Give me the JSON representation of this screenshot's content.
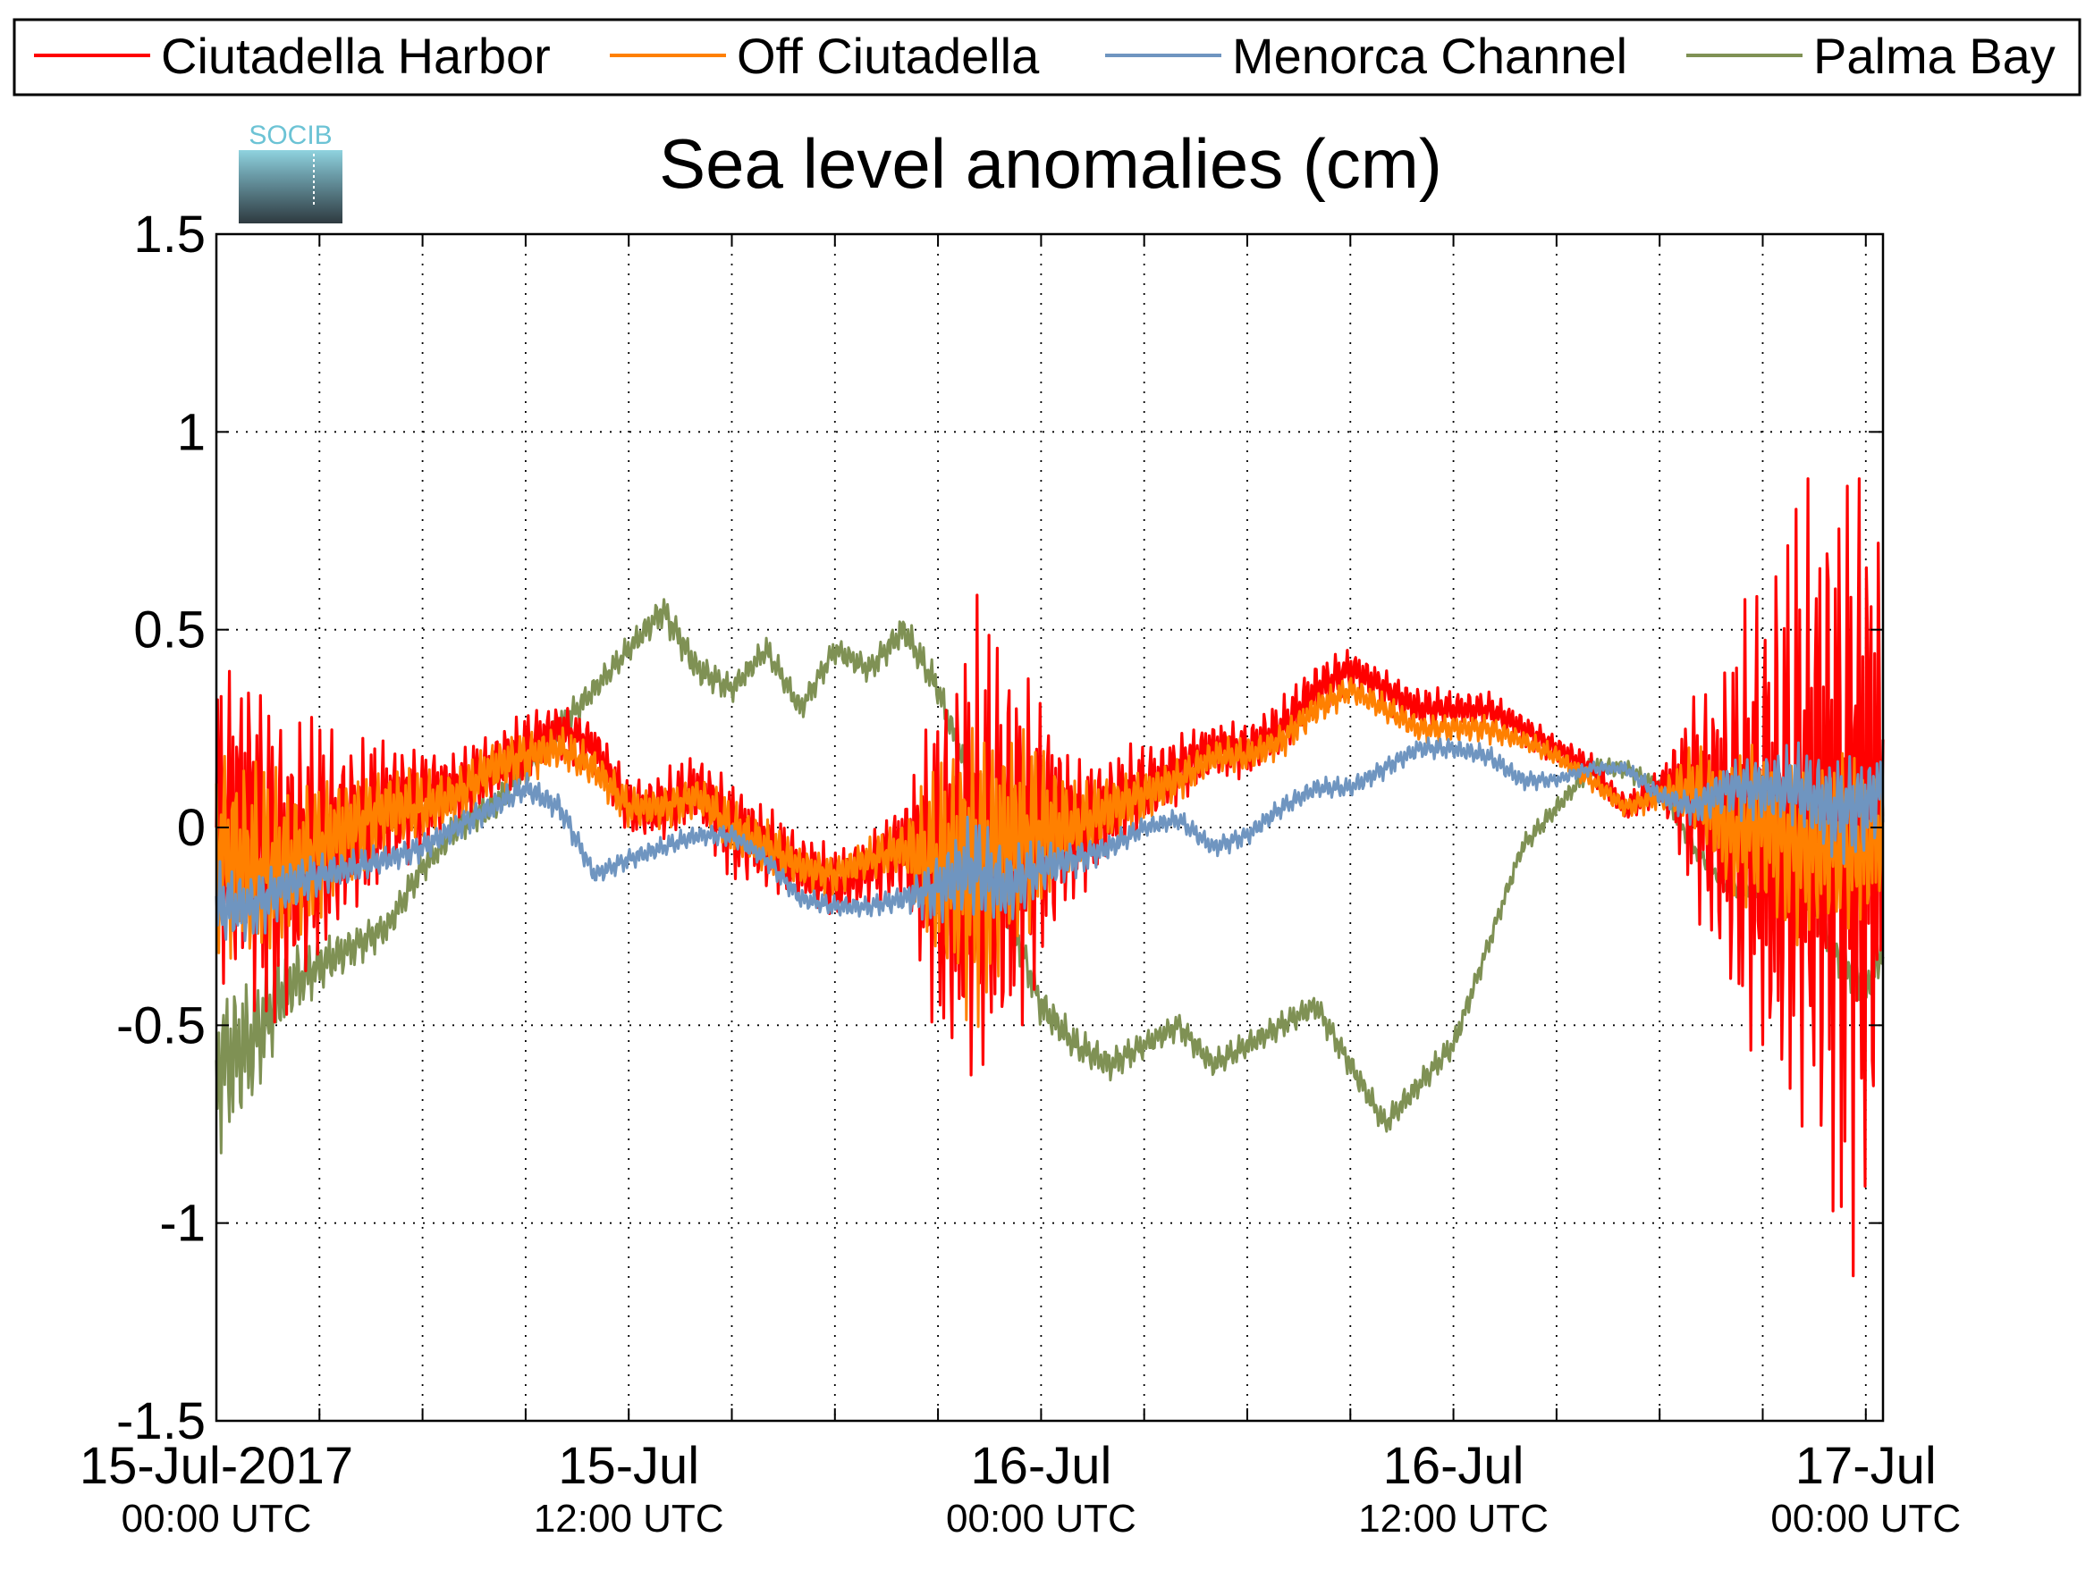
{
  "chart_data": {
    "type": "line",
    "title": "Sea level anomalies (cm)",
    "xlabel": "",
    "ylabel": "",
    "ylim": [
      -1.5,
      1.5
    ],
    "xlim": [
      "2017-07-15T00:00Z",
      "2017-07-17T00:30Z"
    ],
    "yticks": [
      -1.5,
      -1,
      -0.5,
      0,
      0.5,
      1,
      1.5
    ],
    "ytick_labels": [
      "-1.5",
      "-1",
      "-0.5",
      "0",
      "0.5",
      "1",
      "1.5"
    ],
    "x_major_ticks": [
      {
        "time": "2017-07-15T00:00Z",
        "label": "15-Jul-2017",
        "sub": "00:00 UTC"
      },
      {
        "time": "2017-07-15T12:00Z",
        "label": "15-Jul",
        "sub": "12:00 UTC"
      },
      {
        "time": "2017-07-16T00:00Z",
        "label": "16-Jul",
        "sub": "00:00 UTC"
      },
      {
        "time": "2017-07-16T12:00Z",
        "label": "16-Jul",
        "sub": "12:00 UTC"
      },
      {
        "time": "2017-07-17T00:00Z",
        "label": "17-Jul",
        "sub": "00:00 UTC"
      }
    ],
    "grid": true,
    "legend_position": "top",
    "series": [
      {
        "name": "Ciutadella Harbor",
        "color": "#ff0000",
        "x": [
          "2017-07-15T00:00Z",
          "2017-07-15T01:00Z",
          "2017-07-15T02:00Z",
          "2017-07-15T03:00Z",
          "2017-07-15T04:00Z",
          "2017-07-15T05:00Z",
          "2017-07-15T06:00Z",
          "2017-07-15T07:00Z",
          "2017-07-15T08:00Z",
          "2017-07-15T09:00Z",
          "2017-07-15T10:00Z",
          "2017-07-15T11:00Z",
          "2017-07-15T12:00Z",
          "2017-07-15T13:00Z",
          "2017-07-15T14:00Z",
          "2017-07-15T15:00Z",
          "2017-07-15T16:00Z",
          "2017-07-15T17:00Z",
          "2017-07-15T18:00Z",
          "2017-07-15T19:00Z",
          "2017-07-15T20:00Z",
          "2017-07-15T21:00Z",
          "2017-07-15T22:00Z",
          "2017-07-15T23:00Z",
          "2017-07-16T00:00Z",
          "2017-07-16T01:00Z",
          "2017-07-16T02:00Z",
          "2017-07-16T03:00Z",
          "2017-07-16T04:00Z",
          "2017-07-16T05:00Z",
          "2017-07-16T06:00Z",
          "2017-07-16T07:00Z",
          "2017-07-16T08:00Z",
          "2017-07-16T09:00Z",
          "2017-07-16T10:00Z",
          "2017-07-16T11:00Z",
          "2017-07-16T12:00Z",
          "2017-07-16T13:00Z",
          "2017-07-16T14:00Z",
          "2017-07-16T15:00Z",
          "2017-07-16T16:00Z",
          "2017-07-16T17:00Z",
          "2017-07-16T18:00Z",
          "2017-07-16T19:00Z",
          "2017-07-16T20:00Z",
          "2017-07-16T21:00Z",
          "2017-07-16T22:00Z",
          "2017-07-16T23:00Z",
          "2017-07-17T00:00Z",
          "2017-07-17T00:30Z"
        ],
        "y": [
          0.0,
          0.0,
          -0.1,
          -0.05,
          0.0,
          0.05,
          0.08,
          0.1,
          0.15,
          0.2,
          0.25,
          0.2,
          0.05,
          0.05,
          0.1,
          0.0,
          -0.05,
          -0.1,
          -0.15,
          -0.1,
          -0.05,
          -0.1,
          -0.1,
          -0.05,
          0.0,
          0.0,
          0.05,
          0.1,
          0.15,
          0.2,
          0.2,
          0.25,
          0.35,
          0.4,
          0.35,
          0.3,
          0.3,
          0.3,
          0.25,
          0.2,
          0.15,
          0.05,
          0.1,
          0.1,
          0.0,
          0.0,
          0.0,
          0.0,
          0.0,
          0.0
        ],
        "amplitude": [
          0.45,
          0.5,
          0.45,
          0.35,
          0.25,
          0.2,
          0.15,
          0.1,
          0.1,
          0.1,
          0.08,
          0.08,
          0.08,
          0.1,
          0.1,
          0.15,
          0.12,
          0.1,
          0.1,
          0.1,
          0.15,
          0.5,
          0.7,
          0.6,
          0.4,
          0.2,
          0.15,
          0.12,
          0.1,
          0.08,
          0.08,
          0.08,
          0.08,
          0.06,
          0.06,
          0.06,
          0.05,
          0.05,
          0.05,
          0.04,
          0.04,
          0.04,
          0.05,
          0.3,
          0.5,
          0.75,
          0.9,
          1.1,
          1.2,
          0.8
        ]
      },
      {
        "name": "Off Ciutadella",
        "color": "#ff8000",
        "x": [
          "2017-07-15T00:00Z",
          "2017-07-15T01:00Z",
          "2017-07-15T02:00Z",
          "2017-07-15T03:00Z",
          "2017-07-15T04:00Z",
          "2017-07-15T05:00Z",
          "2017-07-15T06:00Z",
          "2017-07-15T07:00Z",
          "2017-07-15T08:00Z",
          "2017-07-15T09:00Z",
          "2017-07-15T10:00Z",
          "2017-07-15T11:00Z",
          "2017-07-15T12:00Z",
          "2017-07-15T13:00Z",
          "2017-07-15T14:00Z",
          "2017-07-15T15:00Z",
          "2017-07-15T16:00Z",
          "2017-07-15T17:00Z",
          "2017-07-15T18:00Z",
          "2017-07-15T19:00Z",
          "2017-07-15T20:00Z",
          "2017-07-15T21:00Z",
          "2017-07-15T22:00Z",
          "2017-07-15T23:00Z",
          "2017-07-16T00:00Z",
          "2017-07-16T01:00Z",
          "2017-07-16T02:00Z",
          "2017-07-16T03:00Z",
          "2017-07-16T04:00Z",
          "2017-07-16T05:00Z",
          "2017-07-16T06:00Z",
          "2017-07-16T07:00Z",
          "2017-07-16T08:00Z",
          "2017-07-16T09:00Z",
          "2017-07-16T10:00Z",
          "2017-07-16T11:00Z",
          "2017-07-16T12:00Z",
          "2017-07-16T13:00Z",
          "2017-07-16T14:00Z",
          "2017-07-16T15:00Z",
          "2017-07-16T16:00Z",
          "2017-07-16T17:00Z",
          "2017-07-16T18:00Z",
          "2017-07-16T19:00Z",
          "2017-07-16T20:00Z",
          "2017-07-16T21:00Z",
          "2017-07-16T22:00Z",
          "2017-07-16T23:00Z",
          "2017-07-17T00:00Z",
          "2017-07-17T00:30Z"
        ],
        "y": [
          -0.05,
          -0.1,
          -0.1,
          -0.05,
          0.0,
          0.05,
          0.05,
          0.08,
          0.15,
          0.18,
          0.2,
          0.15,
          0.05,
          0.05,
          0.08,
          0.0,
          -0.05,
          -0.1,
          -0.12,
          -0.08,
          -0.05,
          -0.1,
          -0.1,
          -0.05,
          0.0,
          0.0,
          0.05,
          0.08,
          0.12,
          0.18,
          0.18,
          0.22,
          0.3,
          0.35,
          0.3,
          0.25,
          0.25,
          0.25,
          0.22,
          0.18,
          0.12,
          0.05,
          0.08,
          0.1,
          0.0,
          0.0,
          -0.05,
          -0.05,
          -0.05,
          0.0
        ],
        "amplitude": [
          0.3,
          0.3,
          0.25,
          0.2,
          0.15,
          0.12,
          0.1,
          0.08,
          0.08,
          0.08,
          0.06,
          0.06,
          0.06,
          0.06,
          0.06,
          0.08,
          0.08,
          0.06,
          0.06,
          0.06,
          0.08,
          0.3,
          0.45,
          0.35,
          0.25,
          0.12,
          0.1,
          0.08,
          0.06,
          0.05,
          0.05,
          0.05,
          0.05,
          0.04,
          0.04,
          0.04,
          0.04,
          0.04,
          0.03,
          0.03,
          0.03,
          0.03,
          0.04,
          0.12,
          0.2,
          0.25,
          0.25,
          0.25,
          0.25,
          0.2
        ]
      },
      {
        "name": "Menorca Channel",
        "color": "#6f95c0",
        "x": [
          "2017-07-15T00:00Z",
          "2017-07-15T01:00Z",
          "2017-07-15T02:00Z",
          "2017-07-15T03:00Z",
          "2017-07-15T04:00Z",
          "2017-07-15T05:00Z",
          "2017-07-15T06:00Z",
          "2017-07-15T07:00Z",
          "2017-07-15T08:00Z",
          "2017-07-15T09:00Z",
          "2017-07-15T10:00Z",
          "2017-07-15T11:00Z",
          "2017-07-15T12:00Z",
          "2017-07-15T13:00Z",
          "2017-07-15T14:00Z",
          "2017-07-15T15:00Z",
          "2017-07-15T16:00Z",
          "2017-07-15T17:00Z",
          "2017-07-15T18:00Z",
          "2017-07-15T19:00Z",
          "2017-07-15T20:00Z",
          "2017-07-15T21:00Z",
          "2017-07-15T22:00Z",
          "2017-07-15T23:00Z",
          "2017-07-16T00:00Z",
          "2017-07-16T01:00Z",
          "2017-07-16T02:00Z",
          "2017-07-16T03:00Z",
          "2017-07-16T04:00Z",
          "2017-07-16T05:00Z",
          "2017-07-16T06:00Z",
          "2017-07-16T07:00Z",
          "2017-07-16T08:00Z",
          "2017-07-16T09:00Z",
          "2017-07-16T10:00Z",
          "2017-07-16T11:00Z",
          "2017-07-16T12:00Z",
          "2017-07-16T13:00Z",
          "2017-07-16T14:00Z",
          "2017-07-16T15:00Z",
          "2017-07-16T16:00Z",
          "2017-07-16T17:00Z",
          "2017-07-16T18:00Z",
          "2017-07-16T19:00Z",
          "2017-07-16T20:00Z",
          "2017-07-16T21:00Z",
          "2017-07-16T22:00Z",
          "2017-07-16T23:00Z",
          "2017-07-17T00:00Z",
          "2017-07-17T00:30Z"
        ],
        "y": [
          -0.2,
          -0.2,
          -0.15,
          -0.12,
          -0.1,
          -0.08,
          -0.05,
          0.0,
          0.05,
          0.1,
          0.05,
          -0.12,
          -0.08,
          -0.05,
          -0.02,
          -0.02,
          -0.08,
          -0.18,
          -0.2,
          -0.2,
          -0.18,
          -0.15,
          -0.1,
          -0.15,
          -0.1,
          -0.08,
          -0.05,
          0.0,
          0.02,
          -0.05,
          -0.02,
          0.05,
          0.1,
          0.1,
          0.15,
          0.2,
          0.2,
          0.18,
          0.12,
          0.12,
          0.15,
          0.15,
          0.08,
          0.05,
          0.1,
          0.1,
          0.1,
          0.05,
          0.05,
          0.1
        ],
        "amplitude": [
          0.12,
          0.1,
          0.08,
          0.06,
          0.05,
          0.04,
          0.04,
          0.04,
          0.04,
          0.04,
          0.04,
          0.03,
          0.03,
          0.03,
          0.03,
          0.03,
          0.03,
          0.03,
          0.03,
          0.03,
          0.04,
          0.1,
          0.15,
          0.12,
          0.08,
          0.05,
          0.04,
          0.03,
          0.03,
          0.03,
          0.03,
          0.03,
          0.03,
          0.03,
          0.03,
          0.03,
          0.03,
          0.03,
          0.03,
          0.02,
          0.02,
          0.02,
          0.03,
          0.05,
          0.08,
          0.1,
          0.12,
          0.15,
          0.15,
          0.12
        ]
      },
      {
        "name": "Palma Bay",
        "color": "#7f9154",
        "x": [
          "2017-07-15T00:00Z",
          "2017-07-15T01:00Z",
          "2017-07-15T02:00Z",
          "2017-07-15T03:00Z",
          "2017-07-15T04:00Z",
          "2017-07-15T05:00Z",
          "2017-07-15T06:00Z",
          "2017-07-15T07:00Z",
          "2017-07-15T08:00Z",
          "2017-07-15T09:00Z",
          "2017-07-15T10:00Z",
          "2017-07-15T11:00Z",
          "2017-07-15T12:00Z",
          "2017-07-15T13:00Z",
          "2017-07-15T14:00Z",
          "2017-07-15T15:00Z",
          "2017-07-15T16:00Z",
          "2017-07-15T17:00Z",
          "2017-07-15T18:00Z",
          "2017-07-15T19:00Z",
          "2017-07-15T20:00Z",
          "2017-07-15T21:00Z",
          "2017-07-15T22:00Z",
          "2017-07-15T23:00Z",
          "2017-07-16T00:00Z",
          "2017-07-16T01:00Z",
          "2017-07-16T02:00Z",
          "2017-07-16T03:00Z",
          "2017-07-16T04:00Z",
          "2017-07-16T05:00Z",
          "2017-07-16T06:00Z",
          "2017-07-16T07:00Z",
          "2017-07-16T08:00Z",
          "2017-07-16T09:00Z",
          "2017-07-16T10:00Z",
          "2017-07-16T11:00Z",
          "2017-07-16T12:00Z",
          "2017-07-16T13:00Z",
          "2017-07-16T14:00Z",
          "2017-07-16T15:00Z",
          "2017-07-16T16:00Z",
          "2017-07-16T17:00Z",
          "2017-07-16T18:00Z",
          "2017-07-16T19:00Z",
          "2017-07-16T20:00Z",
          "2017-07-16T21:00Z",
          "2017-07-16T22:00Z",
          "2017-07-16T23:00Z",
          "2017-07-17T00:00Z",
          "2017-07-17T00:30Z"
        ],
        "y": [
          -0.6,
          -0.55,
          -0.4,
          -0.35,
          -0.3,
          -0.25,
          -0.1,
          0.0,
          0.05,
          0.15,
          0.25,
          0.35,
          0.45,
          0.55,
          0.4,
          0.35,
          0.45,
          0.3,
          0.45,
          0.4,
          0.5,
          0.35,
          0.1,
          -0.2,
          -0.45,
          -0.55,
          -0.6,
          -0.55,
          -0.5,
          -0.6,
          -0.55,
          -0.5,
          -0.45,
          -0.6,
          -0.75,
          -0.65,
          -0.55,
          -0.3,
          -0.05,
          0.05,
          0.15,
          0.15,
          0.1,
          -0.05,
          -0.15,
          -0.15,
          -0.1,
          -0.3,
          -0.4,
          -0.3
        ],
        "amplitude": [
          0.25,
          0.2,
          0.12,
          0.08,
          0.06,
          0.05,
          0.05,
          0.05,
          0.05,
          0.04,
          0.05,
          0.04,
          0.04,
          0.05,
          0.05,
          0.04,
          0.04,
          0.04,
          0.04,
          0.04,
          0.05,
          0.05,
          0.05,
          0.06,
          0.06,
          0.05,
          0.05,
          0.04,
          0.04,
          0.04,
          0.04,
          0.04,
          0.04,
          0.04,
          0.04,
          0.04,
          0.04,
          0.03,
          0.03,
          0.03,
          0.03,
          0.03,
          0.03,
          0.03,
          0.03,
          0.04,
          0.05,
          0.06,
          0.08,
          0.08
        ]
      }
    ]
  },
  "logo": {
    "text": "SOCIB"
  }
}
